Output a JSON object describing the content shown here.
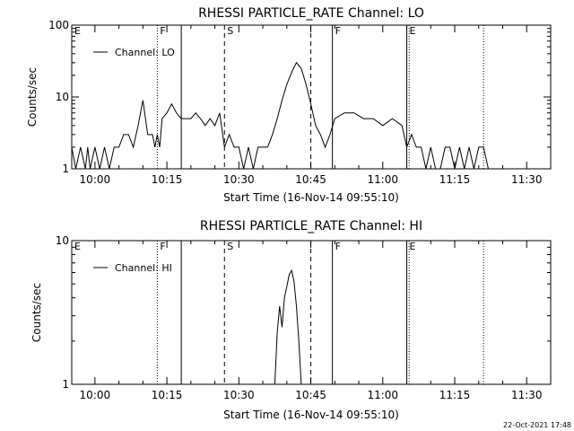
{
  "footer": {
    "timestamp": "22-Oct-2021 17:48"
  },
  "chart_data": [
    {
      "type": "line",
      "title": "RHESSI PARTICLE_RATE Channel: LO",
      "xlabel": "Start Time (16-Nov-14 09:55:10)",
      "ylabel": "Counts/sec",
      "yscale": "log",
      "ylim": [
        1,
        100
      ],
      "xlim": [
        "09:55:10",
        "11:35:00"
      ],
      "xticks": [
        "10:00",
        "10:15",
        "10:30",
        "10:45",
        "11:00",
        "11:15",
        "11:30"
      ],
      "yticks": [
        "1",
        "10",
        "100"
      ],
      "grid": false,
      "legend": {
        "placement": "top-left",
        "entries": [
          "Channel: LO"
        ]
      },
      "markers": [
        {
          "time": "09:55:10",
          "style": "solid",
          "label": "E"
        },
        {
          "time": "10:13:00",
          "style": "dotted",
          "label": "F"
        },
        {
          "time": "10:18:00",
          "style": "solid",
          "label": ""
        },
        {
          "time": "10:27:00",
          "style": "dashed",
          "label": "S"
        },
        {
          "time": "10:45:00",
          "style": "dashed",
          "label": ""
        },
        {
          "time": "10:49:30",
          "style": "solid",
          "label": "F"
        },
        {
          "time": "11:05:00",
          "style": "solid",
          "label": "E"
        },
        {
          "time": "11:05:30",
          "style": "dotted",
          "label": ""
        },
        {
          "time": "11:21:00",
          "style": "dotted",
          "label": ""
        }
      ],
      "series": [
        {
          "name": "Channel: LO",
          "x": [
            "09:55:10",
            "09:56:00",
            "09:57:00",
            "09:58:00",
            "09:58:30",
            "09:59:00",
            "10:00:00",
            "10:01:00",
            "10:02:00",
            "10:03:00",
            "10:04:00",
            "10:05:00",
            "10:06:00",
            "10:07:00",
            "10:08:00",
            "10:09:00",
            "10:10:00",
            "10:11:00",
            "10:12:00",
            "10:12:30",
            "10:13:00",
            "10:13:30",
            "10:14:00",
            "10:15:00",
            "10:16:00",
            "10:17:00",
            "10:18:00",
            "10:19:00",
            "10:20:00",
            "10:21:00",
            "10:22:00",
            "10:23:00",
            "10:24:00",
            "10:25:00",
            "10:26:00",
            "10:27:00",
            "10:28:00",
            "10:29:00",
            "10:30:00",
            "10:31:00",
            "10:32:00",
            "10:33:00",
            "10:34:00",
            "10:35:00",
            "10:36:00",
            "10:37:00",
            "10:38:00",
            "10:39:00",
            "10:40:00",
            "10:41:00",
            "10:42:00",
            "10:43:00",
            "10:44:00",
            "10:45:00",
            "10:46:00",
            "10:47:00",
            "10:48:00",
            "10:49:00",
            "10:50:00",
            "10:52:00",
            "10:54:00",
            "10:56:00",
            "10:58:00",
            "11:00:00",
            "11:02:00",
            "11:04:00",
            "11:05:00",
            "11:06:00",
            "11:07:00",
            "11:08:00",
            "11:09:00",
            "11:10:00",
            "11:11:00",
            "11:12:00",
            "11:13:00",
            "11:14:00",
            "11:15:00",
            "11:16:00",
            "11:17:00",
            "11:18:00",
            "11:19:00",
            "11:20:00",
            "11:21:00",
            "11:22:00"
          ],
          "values": [
            2,
            1,
            2,
            1,
            2,
            1,
            2,
            1,
            2,
            1,
            2,
            2,
            3,
            3,
            2,
            4,
            9,
            3,
            3,
            2,
            3,
            2,
            5,
            6,
            8,
            6,
            5,
            5,
            5,
            6,
            5,
            4,
            5,
            4,
            6,
            2,
            3,
            2,
            2,
            1,
            2,
            1,
            2,
            2,
            2,
            3,
            5,
            9,
            15,
            22,
            30,
            25,
            15,
            8,
            4,
            3,
            2,
            3,
            5,
            6,
            6,
            5,
            5,
            4,
            5,
            4,
            2,
            3,
            2,
            2,
            1,
            2,
            1,
            1,
            2,
            2,
            1,
            2,
            1,
            2,
            1,
            2,
            2,
            1
          ]
        }
      ]
    },
    {
      "type": "line",
      "title": "RHESSI PARTICLE_RATE Channel: HI",
      "xlabel": "Start Time (16-Nov-14 09:55:10)",
      "ylabel": "Counts/sec",
      "yscale": "log",
      "ylim": [
        1,
        10
      ],
      "xlim": [
        "09:55:10",
        "11:35:00"
      ],
      "xticks": [
        "10:00",
        "10:15",
        "10:30",
        "10:45",
        "11:00",
        "11:15",
        "11:30"
      ],
      "yticks": [
        "1",
        "10"
      ],
      "grid": false,
      "legend": {
        "placement": "top-left",
        "entries": [
          "Channel: HI"
        ]
      },
      "markers": [
        {
          "time": "09:55:10",
          "style": "solid",
          "label": "E"
        },
        {
          "time": "10:13:00",
          "style": "dotted",
          "label": "F"
        },
        {
          "time": "10:18:00",
          "style": "solid",
          "label": ""
        },
        {
          "time": "10:27:00",
          "style": "dashed",
          "label": "S"
        },
        {
          "time": "10:45:00",
          "style": "dashed",
          "label": ""
        },
        {
          "time": "10:49:30",
          "style": "solid",
          "label": "F"
        },
        {
          "time": "11:05:00",
          "style": "solid",
          "label": "E"
        },
        {
          "time": "11:05:30",
          "style": "dotted",
          "label": ""
        },
        {
          "time": "11:21:00",
          "style": "dotted",
          "label": ""
        }
      ],
      "series": [
        {
          "name": "Channel: HI",
          "x": [
            "10:37:30",
            "10:38:00",
            "10:38:30",
            "10:39:00",
            "10:39:30",
            "10:40:00",
            "10:40:30",
            "10:41:00",
            "10:41:30",
            "10:42:00",
            "10:42:30",
            "10:43:00"
          ],
          "values": [
            1,
            2.3,
            3.5,
            2.5,
            4,
            4.8,
            5.8,
            6.2,
            5.2,
            3.5,
            2,
            1
          ]
        }
      ]
    }
  ]
}
